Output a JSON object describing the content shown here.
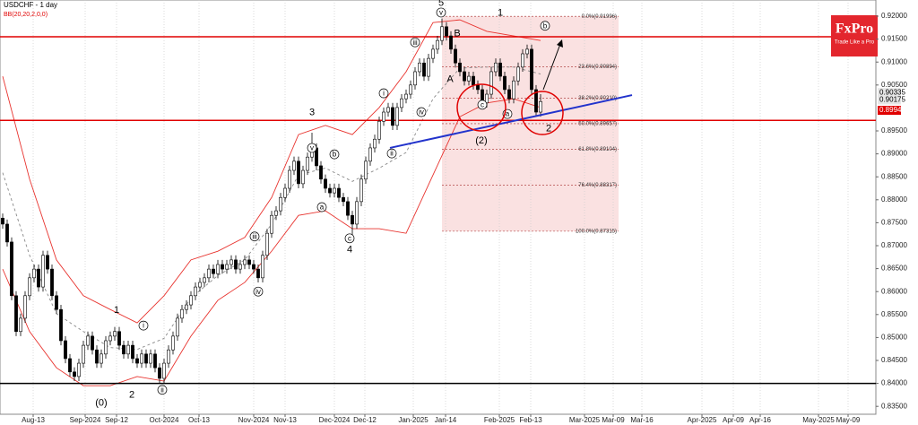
{
  "chart_data": {
    "type": "candlestick",
    "title": "USDCHF - 1 day",
    "indicator": "BB(20,20,2,0,0)",
    "logo": {
      "brand": "FxPro",
      "tagline": "Trade Like a Pro"
    },
    "xlim": [
      -0.6,
      194.8
    ],
    "ylim": [
      0.83328,
      0.92352
    ],
    "grid": true,
    "xticks": [
      {
        "value": 6.8,
        "label": "Aug-13"
      },
      {
        "value": 18.4,
        "label": "Sep-2024"
      },
      {
        "value": 25.4,
        "label": "Sep-12"
      },
      {
        "value": 36,
        "label": "Oct-2024"
      },
      {
        "value": 43.8,
        "label": "Oct-13"
      },
      {
        "value": 56,
        "label": "Nov-2024"
      },
      {
        "value": 63,
        "label": "Nov-13"
      },
      {
        "value": 74,
        "label": "Dec-2024"
      },
      {
        "value": 80.8,
        "label": "Dec-12"
      },
      {
        "value": 91.6,
        "label": "Jan-2025"
      },
      {
        "value": 98.8,
        "label": "Jan-14"
      },
      {
        "value": 110.8,
        "label": "Feb-2025"
      },
      {
        "value": 117.8,
        "label": "Feb-13"
      },
      {
        "value": 129.8,
        "label": "Mar-2025"
      },
      {
        "value": 136.2,
        "label": "Mar-09"
      },
      {
        "value": 142.6,
        "label": "Mar-16"
      },
      {
        "value": 156,
        "label": "Apr-2025"
      },
      {
        "value": 163,
        "label": "Apr-09"
      },
      {
        "value": 169,
        "label": "Apr-16"
      },
      {
        "value": 182,
        "label": "May-2025"
      },
      {
        "value": 188.6,
        "label": "May-09"
      }
    ],
    "yticks": [
      {
        "value": 0.92,
        "label": "0.92000"
      },
      {
        "value": 0.915,
        "label": "0.91500"
      },
      {
        "value": 0.91,
        "label": "0.91000"
      },
      {
        "value": 0.905,
        "label": "0.90500"
      },
      {
        "value": 0.895,
        "label": "0.89500"
      },
      {
        "value": 0.89,
        "label": "0.89000"
      },
      {
        "value": 0.885,
        "label": "0.88500"
      },
      {
        "value": 0.88,
        "label": "0.88000"
      },
      {
        "value": 0.875,
        "label": "0.87500"
      },
      {
        "value": 0.87,
        "label": "0.87000"
      },
      {
        "value": 0.865,
        "label": "0.86500"
      },
      {
        "value": 0.86,
        "label": "0.86000"
      },
      {
        "value": 0.855,
        "label": "0.85500"
      },
      {
        "value": 0.85,
        "label": "0.85000"
      },
      {
        "value": 0.845,
        "label": "0.84500"
      },
      {
        "value": 0.84,
        "label": "0.84000"
      },
      {
        "value": 0.835,
        "label": "0.83500"
      }
    ],
    "open": [
      0.876,
      0.8747,
      0.8708,
      0.8591,
      0.8513,
      0.8542,
      0.8591,
      0.863,
      0.8649,
      0.861,
      0.8679,
      0.8649,
      0.8591,
      0.8561,
      0.8493,
      0.8454,
      0.8425,
      0.8415,
      0.8444,
      0.8483,
      0.8503,
      0.8473,
      0.8444,
      0.8464,
      0.8493,
      0.8503,
      0.8513,
      0.8483,
      0.8464,
      0.8483,
      0.8454,
      0.8444,
      0.8464,
      0.8444,
      0.8464,
      0.8434,
      0.8411,
      0.8444,
      0.8473,
      0.8503,
      0.8542,
      0.8561,
      0.8571,
      0.8591,
      0.861,
      0.862,
      0.863,
      0.8649,
      0.8639,
      0.8659,
      0.8649,
      0.8659,
      0.8669,
      0.8649,
      0.8659,
      0.8669,
      0.8659,
      0.8649,
      0.863,
      0.8679,
      0.8727,
      0.8766,
      0.8776,
      0.8805,
      0.8825,
      0.8864,
      0.8884,
      0.8835,
      0.8864,
      0.8893,
      0.8913,
      0.8874,
      0.8845,
      0.8825,
      0.8815,
      0.8825,
      0.8805,
      0.8796,
      0.8766,
      0.8747,
      0.8796,
      0.8845,
      0.8884,
      0.8913,
      0.8932,
      0.8971,
      0.8991,
      0.9001,
      0.8962,
      0.9001,
      0.902,
      0.903,
      0.905,
      0.9079,
      0.9098,
      0.9069,
      0.9108,
      0.9128,
      0.9147,
      0.9177,
      0.9157,
      0.9128,
      0.9098,
      0.9079,
      0.9059,
      0.9069,
      0.905,
      0.904,
      0.9011,
      0.903,
      0.9079,
      0.9098,
      0.9069,
      0.904,
      0.902,
      0.9059,
      0.9089,
      0.9118,
      0.9128,
      0.904,
      0.8991
    ],
    "close": [
      0.8747,
      0.8708,
      0.8591,
      0.8513,
      0.8542,
      0.8591,
      0.863,
      0.8649,
      0.861,
      0.8679,
      0.8649,
      0.8591,
      0.8561,
      0.8493,
      0.8454,
      0.8425,
      0.8415,
      0.8444,
      0.8483,
      0.8503,
      0.8473,
      0.8444,
      0.8464,
      0.8493,
      0.8503,
      0.8513,
      0.8483,
      0.8464,
      0.8483,
      0.8454,
      0.8444,
      0.8464,
      0.8444,
      0.8464,
      0.8434,
      0.8411,
      0.8444,
      0.8473,
      0.8503,
      0.8542,
      0.8561,
      0.8571,
      0.8591,
      0.861,
      0.862,
      0.863,
      0.8649,
      0.8639,
      0.8659,
      0.8649,
      0.8659,
      0.8669,
      0.8649,
      0.8659,
      0.8669,
      0.8659,
      0.8649,
      0.863,
      0.8679,
      0.8727,
      0.8766,
      0.8776,
      0.8805,
      0.8825,
      0.8864,
      0.8884,
      0.8835,
      0.8864,
      0.8893,
      0.8913,
      0.8874,
      0.8845,
      0.8825,
      0.8815,
      0.8825,
      0.8805,
      0.8796,
      0.8766,
      0.8747,
      0.8796,
      0.8845,
      0.8884,
      0.8913,
      0.8932,
      0.8971,
      0.8991,
      0.9001,
      0.8962,
      0.9001,
      0.902,
      0.903,
      0.905,
      0.9079,
      0.9098,
      0.9069,
      0.9108,
      0.9128,
      0.9147,
      0.9177,
      0.9157,
      0.9128,
      0.9098,
      0.9079,
      0.9059,
      0.9069,
      0.905,
      0.904,
      0.9011,
      0.903,
      0.9079,
      0.9098,
      0.9069,
      0.904,
      0.902,
      0.9059,
      0.9089,
      0.9118,
      0.9128,
      0.904,
      0.8991,
      0.9014
    ],
    "high": [
      0.877,
      0.8757,
      0.8718,
      0.8601,
      0.8552,
      0.8601,
      0.864,
      0.8659,
      0.8659,
      0.8689,
      0.8689,
      0.8659,
      0.8601,
      0.8571,
      0.8503,
      0.8464,
      0.8435,
      0.8454,
      0.8493,
      0.8513,
      0.8513,
      0.8483,
      0.8474,
      0.8503,
      0.8513,
      0.8523,
      0.8523,
      0.8493,
      0.8493,
      0.8493,
      0.8464,
      0.8474,
      0.8474,
      0.8474,
      0.8474,
      0.8444,
      0.8454,
      0.8483,
      0.8513,
      0.8552,
      0.8571,
      0.8581,
      0.8601,
      0.862,
      0.863,
      0.864,
      0.8659,
      0.8659,
      0.8669,
      0.8669,
      0.8669,
      0.8679,
      0.8679,
      0.8669,
      0.8679,
      0.8679,
      0.8669,
      0.8659,
      0.8689,
      0.8737,
      0.8776,
      0.8786,
      0.8815,
      0.8835,
      0.8874,
      0.8894,
      0.8894,
      0.8874,
      0.8903,
      0.8946,
      0.8923,
      0.8884,
      0.8855,
      0.8835,
      0.8835,
      0.8835,
      0.8815,
      0.8806,
      0.8776,
      0.8806,
      0.8855,
      0.8894,
      0.8923,
      0.8942,
      0.8981,
      0.9001,
      0.9011,
      0.9011,
      0.9011,
      0.903,
      0.904,
      0.906,
      0.9089,
      0.9108,
      0.9108,
      0.9118,
      0.9138,
      0.9157,
      0.9195,
      0.9187,
      0.9167,
      0.9138,
      0.9108,
      0.9089,
      0.9079,
      0.9079,
      0.906,
      0.905,
      0.904,
      0.9089,
      0.9108,
      0.9108,
      0.9079,
      0.905,
      0.9069,
      0.9099,
      0.9128,
      0.9138,
      0.9138,
      0.905,
      0.903
    ],
    "low": [
      0.8737,
      0.8698,
      0.8581,
      0.8503,
      0.8503,
      0.8532,
      0.8581,
      0.862,
      0.86,
      0.86,
      0.8639,
      0.8581,
      0.8551,
      0.8483,
      0.8444,
      0.8415,
      0.8405,
      0.8405,
      0.8434,
      0.8473,
      0.8463,
      0.8434,
      0.8434,
      0.8454,
      0.8483,
      0.8493,
      0.8473,
      0.8454,
      0.8454,
      0.8444,
      0.8434,
      0.8434,
      0.8434,
      0.8434,
      0.8424,
      0.8401,
      0.8401,
      0.8434,
      0.8463,
      0.8493,
      0.8532,
      0.8551,
      0.8561,
      0.8581,
      0.86,
      0.861,
      0.862,
      0.8629,
      0.8629,
      0.8639,
      0.8639,
      0.8649,
      0.8639,
      0.8639,
      0.8649,
      0.8649,
      0.8639,
      0.862,
      0.862,
      0.8669,
      0.8717,
      0.8756,
      0.8766,
      0.8795,
      0.8815,
      0.8854,
      0.8825,
      0.8825,
      0.8854,
      0.8883,
      0.8864,
      0.8835,
      0.8815,
      0.8805,
      0.8805,
      0.8795,
      0.8786,
      0.8756,
      0.8718,
      0.8737,
      0.8786,
      0.8835,
      0.8874,
      0.8903,
      0.8922,
      0.8961,
      0.8981,
      0.8952,
      0.8952,
      0.8991,
      0.901,
      0.902,
      0.904,
      0.9069,
      0.9059,
      0.9059,
      0.9098,
      0.9118,
      0.9137,
      0.9147,
      0.9118,
      0.9088,
      0.9069,
      0.9049,
      0.9049,
      0.904,
      0.903,
      0.9001,
      0.9001,
      0.902,
      0.9069,
      0.9059,
      0.903,
      0.901,
      0.901,
      0.9049,
      0.9079,
      0.9108,
      0.903,
      0.8981,
      0.8981
    ],
    "bands": {
      "x": [
        0,
        6,
        12,
        18,
        24,
        30,
        36,
        42,
        48,
        54,
        60,
        66,
        72,
        78,
        84,
        90,
        96,
        102,
        108,
        114,
        120
      ],
      "upper": [
        0.9069,
        0.8845,
        0.8669,
        0.8591,
        0.8561,
        0.8532,
        0.8591,
        0.8669,
        0.8688,
        0.8718,
        0.8805,
        0.8942,
        0.8962,
        0.8942,
        0.9001,
        0.9079,
        0.9186,
        0.9192,
        0.9167,
        0.9157,
        0.9147
      ],
      "middle": [
        0.8859,
        0.8679,
        0.8552,
        0.8513,
        0.8478,
        0.8474,
        0.8498,
        0.8586,
        0.8635,
        0.8669,
        0.8747,
        0.8854,
        0.8869,
        0.884,
        0.8869,
        0.8903,
        0.902,
        0.9087,
        0.9089,
        0.9089,
        0.9074
      ],
      "lower": [
        0.8649,
        0.8513,
        0.8434,
        0.8395,
        0.8395,
        0.8415,
        0.8405,
        0.8503,
        0.8581,
        0.862,
        0.8688,
        0.8766,
        0.8776,
        0.8737,
        0.8737,
        0.8727,
        0.8854,
        0.8981,
        0.9011,
        0.902,
        0.9001
      ],
      "color": "#e8332e",
      "mid_color": "#888888"
    },
    "horizontal_lines": [
      {
        "value": 0.9155,
        "color": "#e00000"
      },
      {
        "value": 0.8973,
        "color": "#e00000"
      },
      {
        "value": 0.84,
        "color": "#000000"
      }
    ],
    "trendline": {
      "x": [
        86.4,
        140.4
      ],
      "y": [
        0.8913,
        0.9028
      ],
      "color": "#2233cc"
    },
    "fibonacci": {
      "x": [
        98,
        137.4
      ],
      "color": "#a52a2a",
      "levels": [
        {
          "value": 0.91996,
          "label": "0.0%(0.91996)"
        },
        {
          "value": 0.90894,
          "label": "23.6%(0.90894)"
        },
        {
          "value": 0.9021,
          "label": "38.2%(0.90210)"
        },
        {
          "value": 0.89657,
          "label": "50.0%(0.89657)"
        },
        {
          "value": 0.89104,
          "label": "61.8%(0.89104)"
        },
        {
          "value": 0.88317,
          "label": "76.4%(0.88317)"
        },
        {
          "value": 0.87315,
          "label": "100.0%(0.87315)"
        }
      ]
    },
    "price_markers": [
      {
        "value": 0.90335,
        "color": "#e6e6e6",
        "text_color": "#000000"
      },
      {
        "value": 0.90175,
        "color": "#e6e6e6",
        "text_color": "#000000"
      },
      {
        "value": 0.89948,
        "color": "#e00000",
        "text_color": "#ffffff"
      }
    ],
    "annotations": [
      {
        "text": "(0)",
        "x": 22,
        "y": 0.8358,
        "circled": false
      },
      {
        "text": "1",
        "x": 25.4,
        "y": 0.856,
        "circled": false
      },
      {
        "text": "2",
        "x": 28.8,
        "y": 0.8376,
        "circled": false
      },
      {
        "text": "i",
        "x": 31.4,
        "y": 0.8526,
        "circled": true
      },
      {
        "text": "ii",
        "x": 35.6,
        "y": 0.8386,
        "circled": true
      },
      {
        "text": "iii",
        "x": 56.2,
        "y": 0.872,
        "circled": true
      },
      {
        "text": "iv",
        "x": 57,
        "y": 0.86,
        "circled": true
      },
      {
        "text": "v",
        "x": 69,
        "y": 0.8913,
        "circled": true
      },
      {
        "text": "3",
        "x": 69,
        "y": 0.8991,
        "circled": false
      },
      {
        "text": "a",
        "x": 71.2,
        "y": 0.8784,
        "circled": true
      },
      {
        "text": "b",
        "x": 74,
        "y": 0.8899,
        "circled": true
      },
      {
        "text": "c",
        "x": 77.4,
        "y": 0.8716,
        "circled": true
      },
      {
        "text": "4",
        "x": 77.4,
        "y": 0.8692,
        "circled": false
      },
      {
        "text": "i",
        "x": 85,
        "y": 0.9032,
        "circled": true
      },
      {
        "text": "ii",
        "x": 86.8,
        "y": 0.8901,
        "circled": true
      },
      {
        "text": "iii",
        "x": 92,
        "y": 0.9143,
        "circled": true
      },
      {
        "text": "iv",
        "x": 93.4,
        "y": 0.8991,
        "circled": true
      },
      {
        "text": "v",
        "x": 97.8,
        "y": 0.9208,
        "circled": true
      },
      {
        "text": "5",
        "x": 97.8,
        "y": 0.9229,
        "circled": false
      },
      {
        "text": "B",
        "x": 101.4,
        "y": 0.9163,
        "circled": false
      },
      {
        "text": "A",
        "x": 99.8,
        "y": 0.9063,
        "circled": false
      },
      {
        "text": "1",
        "x": 111,
        "y": 0.9208,
        "circled": false
      },
      {
        "text": "b",
        "x": 121,
        "y": 0.9179,
        "circled": true
      },
      {
        "text": "c",
        "x": 107,
        "y": 0.9007,
        "circled": true
      },
      {
        "text": "(2)",
        "x": 106.8,
        "y": 0.8929,
        "circled": false
      },
      {
        "text": "a",
        "x": 112.6,
        "y": 0.8987,
        "circled": true
      },
      {
        "text": "2",
        "x": 121.8,
        "y": 0.8956,
        "circled": false
      }
    ]
  }
}
